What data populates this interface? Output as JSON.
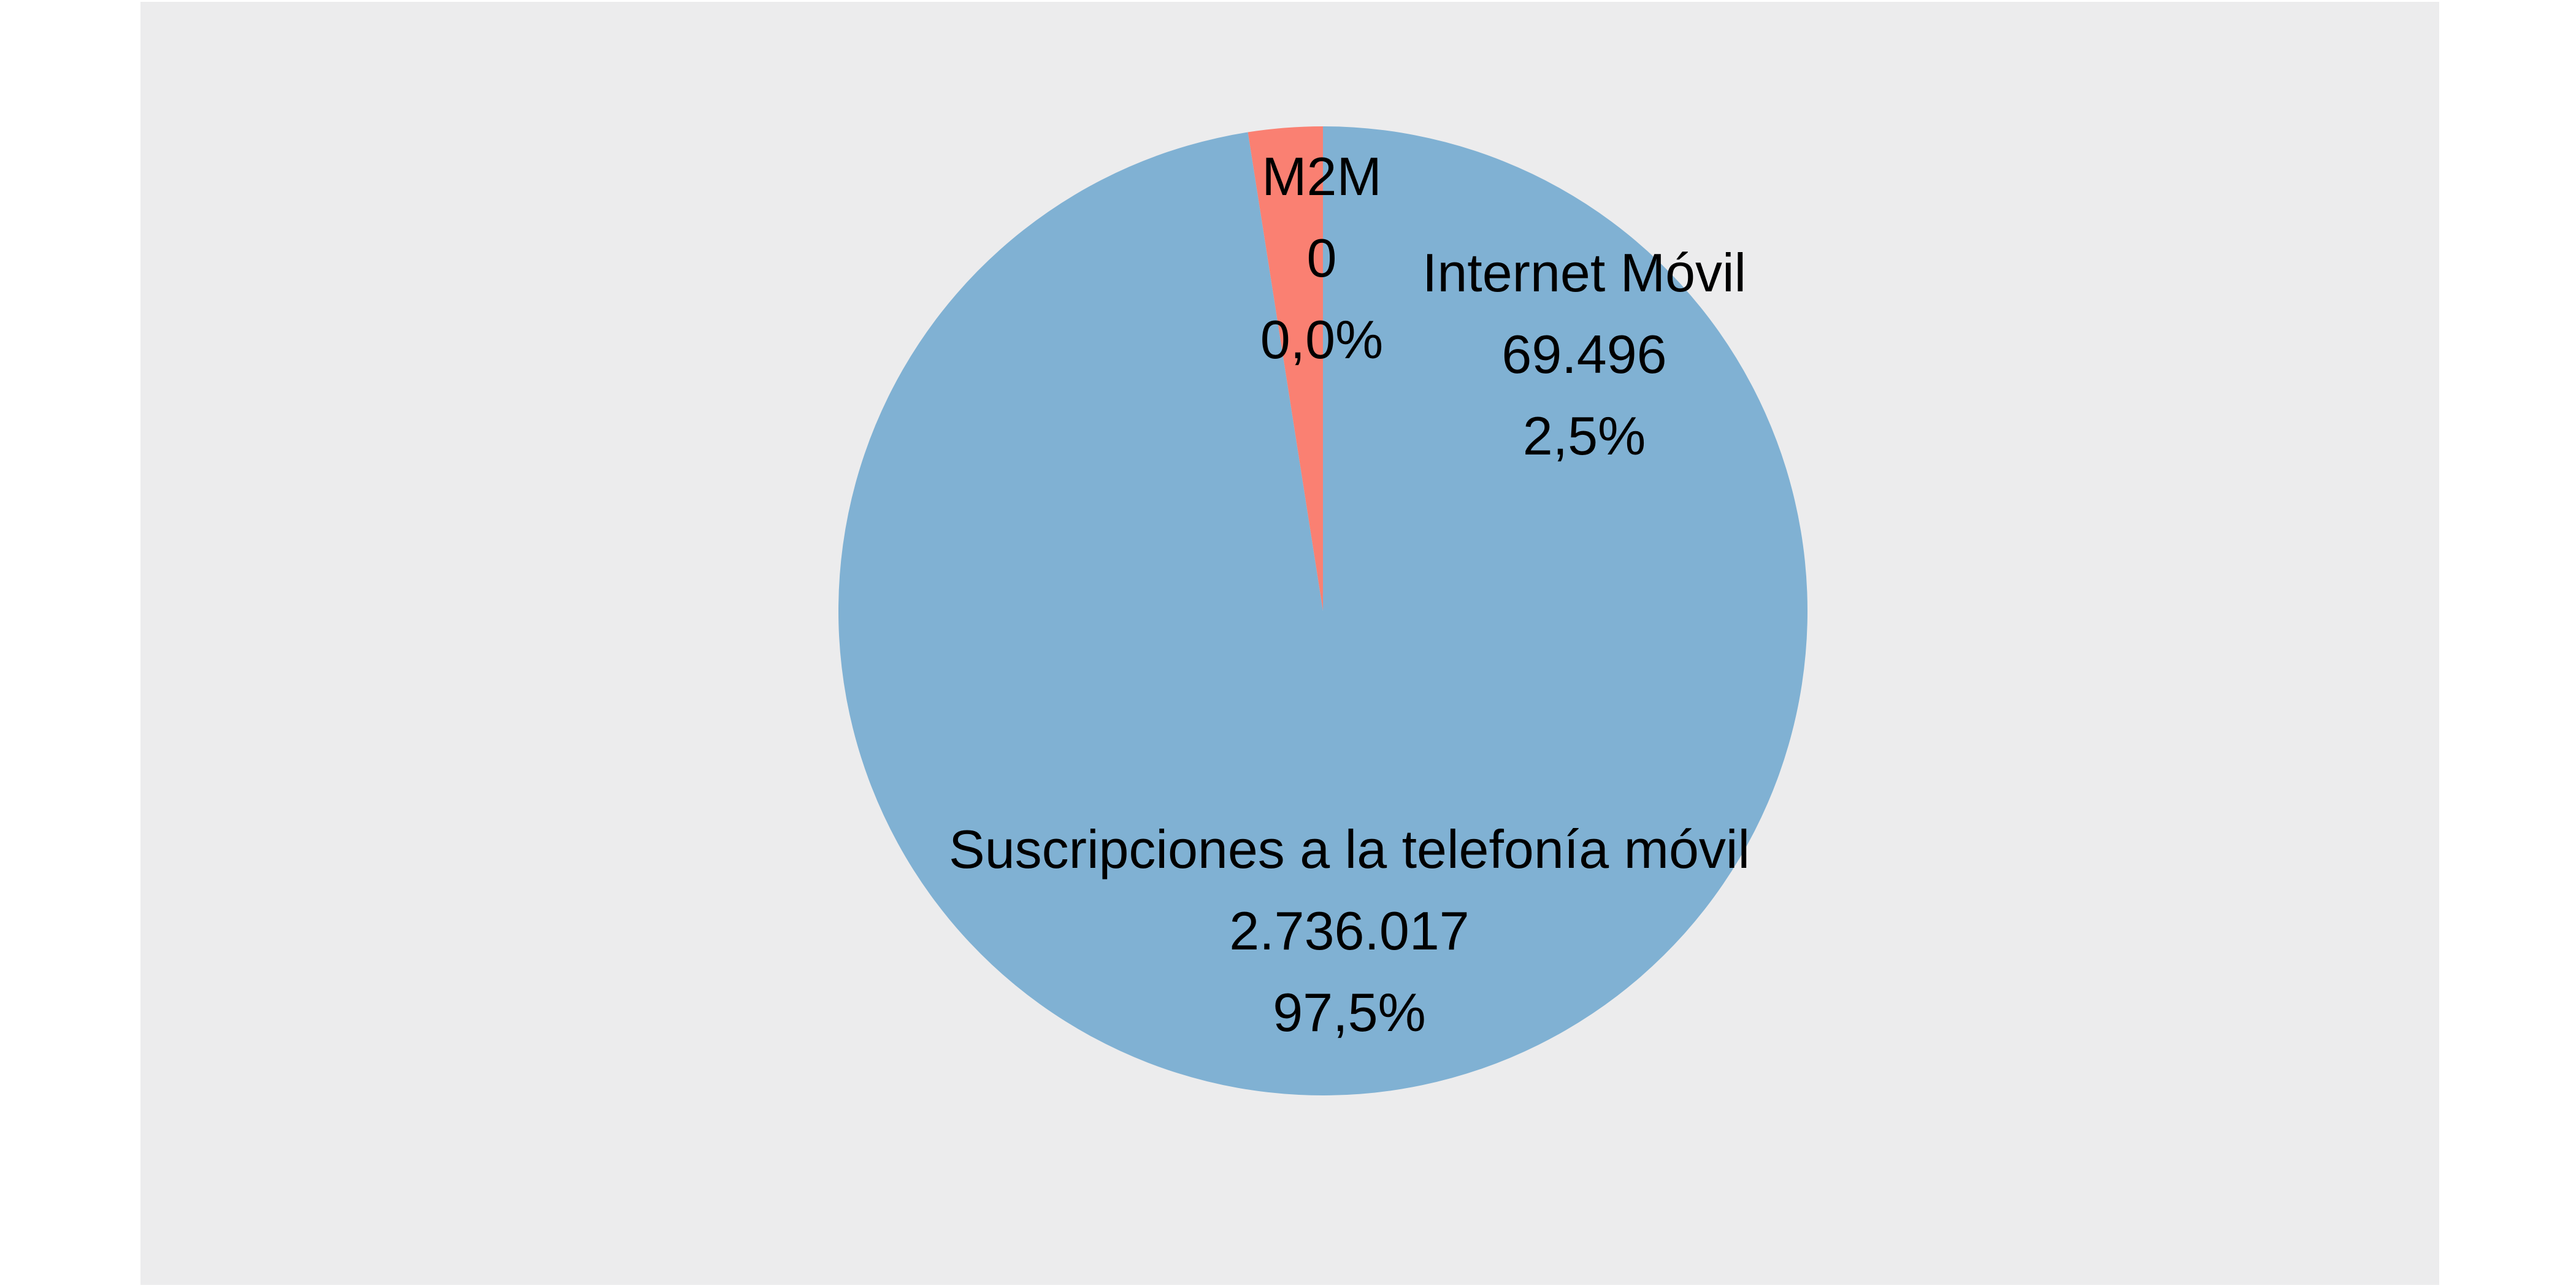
{
  "chart_data": {
    "type": "pie",
    "slices": [
      {
        "name": "M2M",
        "value": 0,
        "value_label": "0",
        "percent": 0.0,
        "percent_label": "0,0%",
        "color": "#fa8072"
      },
      {
        "name": "Internet Móvil",
        "value": 69496,
        "value_label": "69.496",
        "percent": 2.5,
        "percent_label": "2,5%",
        "color": "#fa8072"
      },
      {
        "name": "Suscripciones a la telefonía móvil",
        "value": 2736017,
        "value_label": "2.736.017",
        "percent": 97.5,
        "percent_label": "97,5%",
        "color": "#80b1d3"
      }
    ],
    "start_angle": "12 o'clock",
    "direction": "counterclockwise",
    "legend": "none",
    "background_color": "#ececed"
  }
}
